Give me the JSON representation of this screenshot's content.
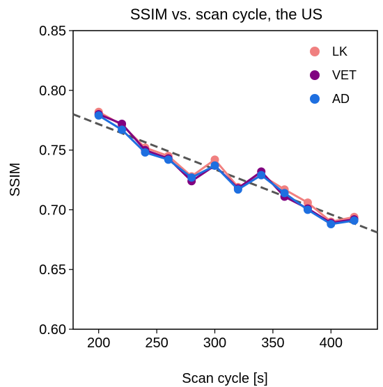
{
  "chart_data": {
    "type": "line",
    "title": "SSIM vs. scan cycle, the US",
    "xlabel": "Scan cycle [s]",
    "ylabel": "SSIM",
    "xlim": [
      178,
      440
    ],
    "ylim": [
      0.6,
      0.85
    ],
    "xticks": [
      200,
      250,
      300,
      350,
      400
    ],
    "yticks": [
      0.6,
      0.65,
      0.7,
      0.75,
      0.8,
      0.85
    ],
    "xtick_labels": [
      "200",
      "250",
      "300",
      "350",
      "400"
    ],
    "ytick_labels": [
      "0.60",
      "0.65",
      "0.70",
      "0.75",
      "0.80",
      "0.85"
    ],
    "grid": false,
    "legend_position": "top-right",
    "x": [
      200,
      220,
      240,
      260,
      280,
      300,
      320,
      340,
      360,
      380,
      400,
      420
    ],
    "series": [
      {
        "name": "LK",
        "color": "#f08080",
        "values": [
          0.782,
          0.771,
          0.752,
          0.745,
          0.728,
          0.742,
          0.719,
          0.729,
          0.717,
          0.706,
          0.69,
          0.694
        ]
      },
      {
        "name": "VET",
        "color": "#800080",
        "values": [
          0.78,
          0.772,
          0.75,
          0.743,
          0.724,
          0.737,
          0.718,
          0.732,
          0.711,
          0.701,
          0.689,
          0.692
        ]
      },
      {
        "name": "AD",
        "color": "#1e6fe0",
        "values": [
          0.779,
          0.767,
          0.748,
          0.742,
          0.727,
          0.737,
          0.717,
          0.729,
          0.714,
          0.7,
          0.688,
          0.691
        ]
      }
    ],
    "trendline": {
      "style": "dashed",
      "color": "#555555",
      "x": [
        178,
        440
      ],
      "y": [
        0.78,
        0.681
      ]
    }
  }
}
